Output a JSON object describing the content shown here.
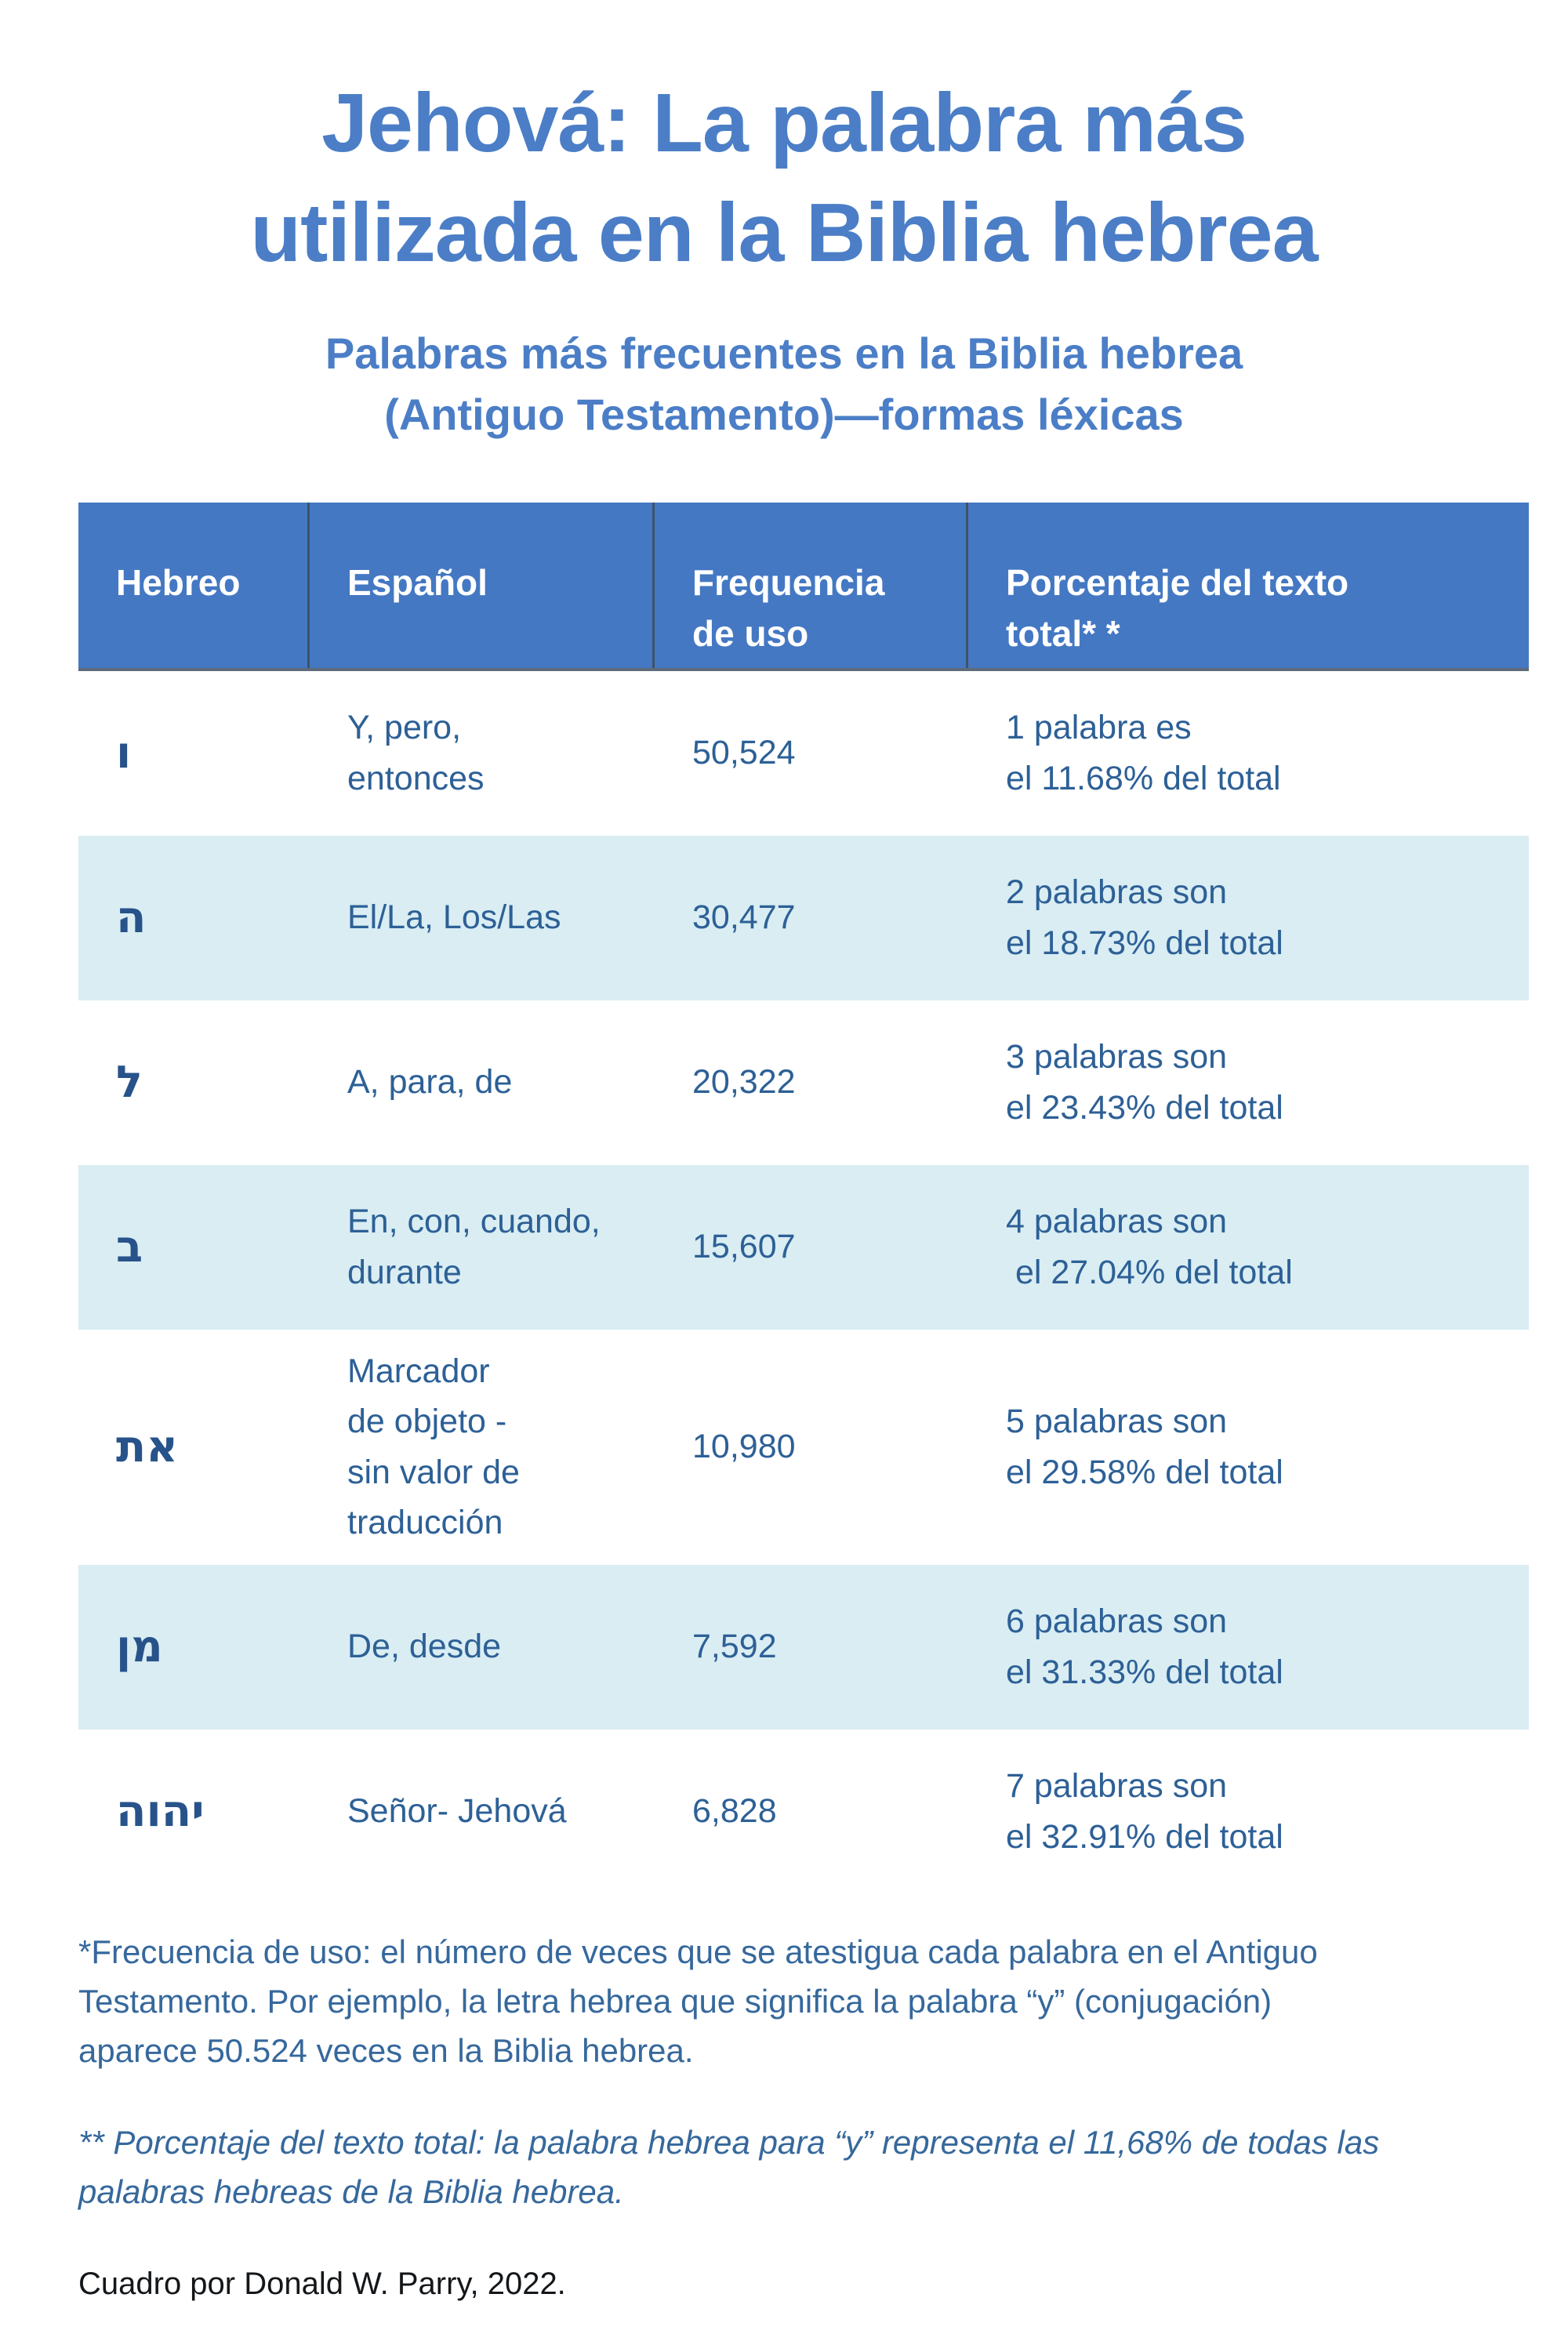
{
  "title": "Jehová: La palabra más\nutilizada en la Biblia hebrea",
  "subtitle": "Palabras más frecuentes en la Biblia hebrea\n(Antiguo Testamento)—formas léxicas",
  "table": {
    "headers": [
      "Hebreo",
      "Español",
      "Frequencia\nde uso",
      "Porcentaje del texto\ntotal* *"
    ],
    "rows": [
      {
        "hebrew": "ו",
        "spanish": "Y, pero,\nentonces",
        "frequency": "50,524",
        "percent": "1 palabra es\nel 11.68% del total"
      },
      {
        "hebrew": "ה",
        "spanish": "El/La, Los/Las",
        "frequency": "30,477",
        "percent": "2 palabras son\nel 18.73% del total"
      },
      {
        "hebrew": "ל",
        "spanish": "A, para, de",
        "frequency": "20,322",
        "percent": "3 palabras son\nel 23.43% del total"
      },
      {
        "hebrew": "ב",
        "spanish": "En, con, cuando,\ndurante",
        "frequency": "15,607",
        "percent": "4 palabras son\n el 27.04% del total"
      },
      {
        "hebrew": "את",
        "spanish": "Marcador\nde objeto -\nsin valor de\ntraducción",
        "frequency": "10,980",
        "percent": "5 palabras son\nel 29.58% del total"
      },
      {
        "hebrew": "מן",
        "spanish": "De, desde",
        "frequency": "7,592",
        "percent": "6 palabras son\nel 31.33% del total"
      },
      {
        "hebrew": "יהוה",
        "spanish": "Señor- Jehová",
        "frequency": "6,828",
        "percent": "7 palabras son\nel 32.91% del total"
      }
    ]
  },
  "footnotes": {
    "first": "*Frecuencia de uso: el número de veces que se atestigua cada palabra en el Antiguo\nTestamento. Por ejemplo, la letra hebrea que significa la palabra “y” (conjugación)\naparece 50.524 veces en la Biblia hebrea.",
    "second": "** Porcentaje del texto total: la palabra hebrea para “y” representa el 11,68% de todas las\npalabras hebreas de la Biblia hebrea.",
    "credit": "Cuadro por Donald W. Parry, 2022."
  },
  "colors": {
    "accent_blue": "#4b7ec6",
    "header_background": "#4478c3",
    "row_alt_background": "#d9edf3",
    "body_text": "#2d6096",
    "hebrew_text": "#27538a",
    "footnote_text": "#36689c",
    "credit_text": "#14171a"
  }
}
